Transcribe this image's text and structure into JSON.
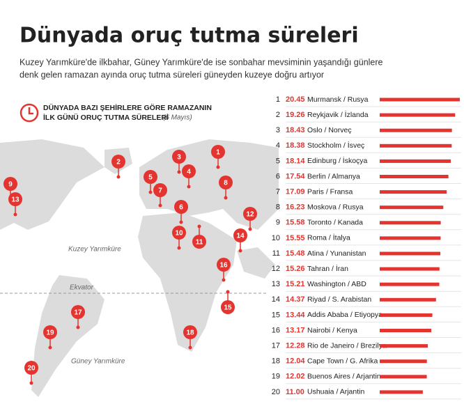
{
  "chart_data": {
    "type": "bar",
    "title": "Dünyada oruç tutma süreleri",
    "subtitle": [
      "Kuzey Yarımküre'de ilkbahar, Güney Yarımküre'de ise sonbahar mevsiminin yaşandığı günlere",
      "denk gelen ramazan ayında oruç tutma süreleri güneyden kuzeye doğru artıyor"
    ],
    "legend_title": [
      "DÜNYADA BAZI ŞEHİRLERE GÖRE RAMAZANIN",
      "İLK GÜNÜ ORUÇ TUTMA SÜRELERİ"
    ],
    "legend_note": "(6 Mayıs)",
    "map_labels": [
      "Kuzey Yarımküre",
      "Ekvator",
      "Güney Yarımküre"
    ],
    "ranks": [
      1,
      2,
      3,
      4,
      5,
      6,
      7,
      8,
      9,
      10,
      11,
      12,
      13,
      14,
      15,
      16,
      17,
      18,
      19,
      20
    ],
    "categories": [
      "Murmansk / Rusya",
      "Reykjavik / İzlanda",
      "Oslo / Norveç",
      "Stockholm / İsveç",
      "Edinburg / İskoçya",
      "Berlin / Almanya",
      "Paris / Fransa",
      "Moskova / Rusya",
      "Toronto / Kanada",
      "Roma / İtalya",
      "Atina / Yunanistan",
      "Tahran / İran",
      "Washington / ABD",
      "Riyad / S. Arabistan",
      "Addis Ababa / Etiyopya",
      "Nairobi / Kenya",
      "Rio de Janeiro / Brezilya",
      "Cape Town / G. Afrika",
      "Buenos Aires / Arjantin",
      "Ushuaia / Arjantin"
    ],
    "values": [
      20.45,
      19.26,
      18.43,
      18.38,
      18.14,
      17.54,
      17.09,
      16.23,
      15.58,
      15.55,
      15.48,
      15.26,
      15.21,
      14.37,
      13.44,
      13.17,
      12.28,
      12.04,
      12.02,
      11.0
    ],
    "value_labels": [
      "20.45",
      "19.26",
      "18.43",
      "18.38",
      "18.14",
      "17.54",
      "17.09",
      "16.23",
      "15.58",
      "15.55",
      "15.48",
      "15.26",
      "15.21",
      "14.37",
      "13.44",
      "13.17",
      "12.28",
      "12.04",
      "12.02",
      "11.00"
    ],
    "color": "#e3342f"
  }
}
